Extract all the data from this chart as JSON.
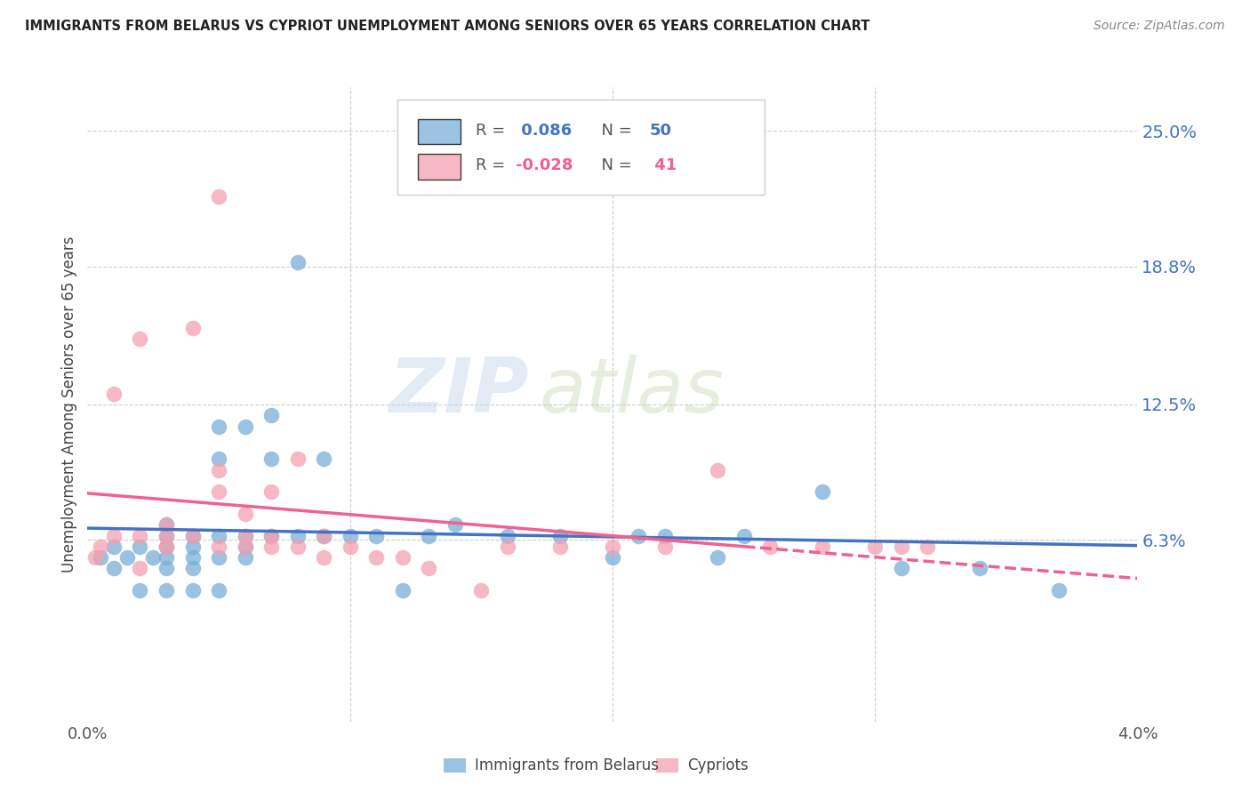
{
  "title": "IMMIGRANTS FROM BELARUS VS CYPRIOT UNEMPLOYMENT AMONG SENIORS OVER 65 YEARS CORRELATION CHART",
  "source": "Source: ZipAtlas.com",
  "ylabel": "Unemployment Among Seniors over 65 years",
  "xlim": [
    0.0,
    0.04
  ],
  "ylim": [
    -0.02,
    0.27
  ],
  "ytick_labels": [
    "25.0%",
    "18.8%",
    "12.5%",
    "6.3%"
  ],
  "ytick_values": [
    0.25,
    0.188,
    0.125,
    0.063
  ],
  "xtick_values": [
    0.0,
    0.01,
    0.02,
    0.03,
    0.04
  ],
  "grid_color": "#cccccc",
  "background_color": "#ffffff",
  "blue_color": "#7aaed6",
  "pink_color": "#f4a0b0",
  "blue_line_color": "#4472c4",
  "pink_line_color": "#f06090",
  "legend_R_blue": " 0.086",
  "legend_N_blue": "50",
  "legend_R_pink": "-0.028",
  "legend_N_pink": " 41",
  "watermark_zip": "ZIP",
  "watermark_atlas": "atlas",
  "blue_x": [
    0.0005,
    0.001,
    0.001,
    0.0015,
    0.002,
    0.002,
    0.0025,
    0.003,
    0.003,
    0.003,
    0.003,
    0.003,
    0.003,
    0.004,
    0.004,
    0.004,
    0.004,
    0.004,
    0.005,
    0.005,
    0.005,
    0.005,
    0.005,
    0.006,
    0.006,
    0.006,
    0.006,
    0.007,
    0.007,
    0.007,
    0.008,
    0.008,
    0.009,
    0.009,
    0.01,
    0.011,
    0.012,
    0.013,
    0.014,
    0.016,
    0.018,
    0.02,
    0.021,
    0.022,
    0.024,
    0.025,
    0.028,
    0.031,
    0.034,
    0.037
  ],
  "blue_y": [
    0.055,
    0.05,
    0.06,
    0.055,
    0.04,
    0.06,
    0.055,
    0.04,
    0.05,
    0.055,
    0.06,
    0.065,
    0.07,
    0.04,
    0.05,
    0.055,
    0.06,
    0.065,
    0.04,
    0.055,
    0.065,
    0.1,
    0.115,
    0.055,
    0.06,
    0.065,
    0.115,
    0.065,
    0.1,
    0.12,
    0.065,
    0.19,
    0.065,
    0.1,
    0.065,
    0.065,
    0.04,
    0.065,
    0.07,
    0.065,
    0.065,
    0.055,
    0.065,
    0.065,
    0.055,
    0.065,
    0.085,
    0.05,
    0.05,
    0.04
  ],
  "pink_x": [
    0.0003,
    0.0005,
    0.001,
    0.001,
    0.002,
    0.002,
    0.002,
    0.003,
    0.003,
    0.003,
    0.004,
    0.004,
    0.005,
    0.005,
    0.005,
    0.005,
    0.006,
    0.006,
    0.006,
    0.007,
    0.007,
    0.007,
    0.008,
    0.008,
    0.009,
    0.009,
    0.01,
    0.011,
    0.012,
    0.013,
    0.015,
    0.016,
    0.018,
    0.02,
    0.022,
    0.024,
    0.026,
    0.028,
    0.03,
    0.031,
    0.032
  ],
  "pink_y": [
    0.055,
    0.06,
    0.065,
    0.13,
    0.05,
    0.065,
    0.155,
    0.06,
    0.065,
    0.07,
    0.065,
    0.16,
    0.06,
    0.085,
    0.095,
    0.22,
    0.06,
    0.065,
    0.075,
    0.06,
    0.065,
    0.085,
    0.06,
    0.1,
    0.055,
    0.065,
    0.06,
    0.055,
    0.055,
    0.05,
    0.04,
    0.06,
    0.06,
    0.06,
    0.06,
    0.095,
    0.06,
    0.06,
    0.06,
    0.06,
    0.06
  ]
}
